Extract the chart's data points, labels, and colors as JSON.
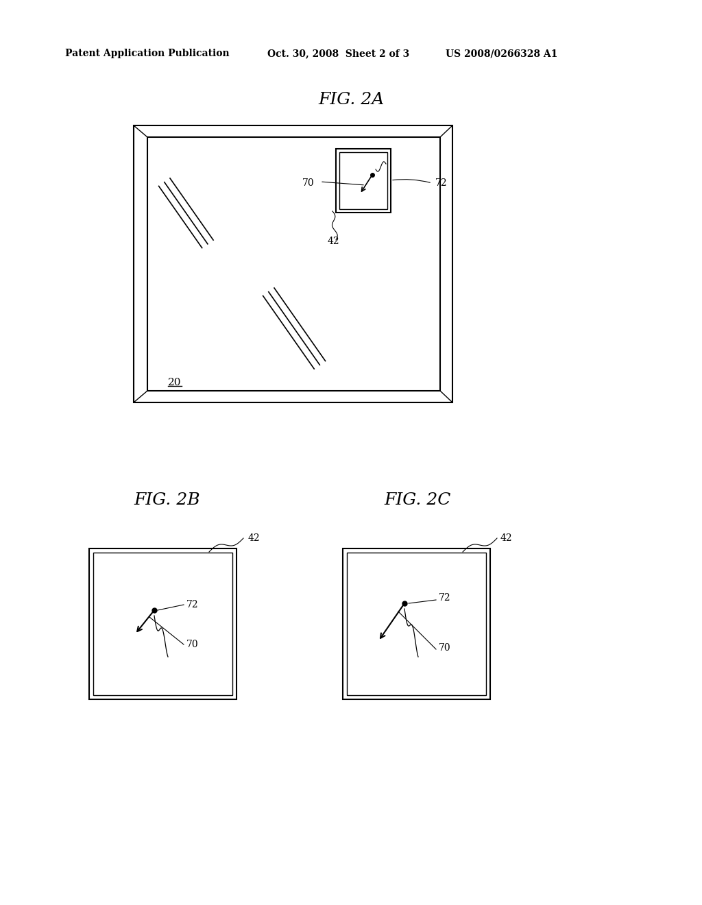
{
  "bg_color": "#ffffff",
  "header_text": "Patent Application Publication",
  "header_date": "Oct. 30, 2008  Sheet 2 of 3",
  "header_patent": "US 2008/0266328 A1",
  "fig2a_title": "FIG. 2A",
  "fig2b_title": "FIG. 2B",
  "fig2c_title": "FIG. 2C",
  "label_20": "20",
  "label_42": "42",
  "label_70": "70",
  "label_72": "72"
}
